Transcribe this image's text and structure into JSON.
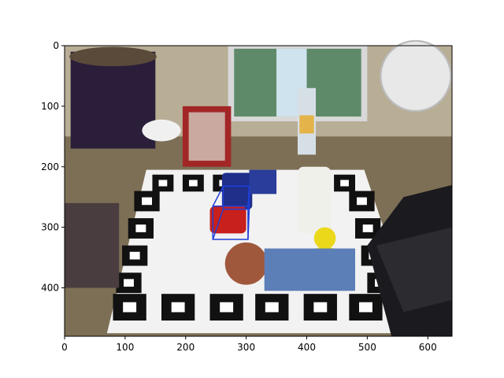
{
  "image": {
    "kind": "photo",
    "description_tags": [
      "tabletop-scene",
      "aruco-marker-board",
      "toys",
      "laptop",
      "monitor",
      "fan",
      "bottle",
      "mug",
      "rubber-duck",
      "toy-car"
    ],
    "colors": {
      "table": "#8b7a5c",
      "board": "#f2f2f2",
      "marker": "#111111",
      "box": "#1f3fd8",
      "frame": "#000000"
    }
  },
  "chart_data": {
    "type": "image-axes",
    "xlim": [
      0,
      640
    ],
    "ylim": [
      480,
      0
    ],
    "x_ticks": [
      0,
      100,
      200,
      300,
      400,
      500,
      600
    ],
    "y_ticks": [
      0,
      100,
      200,
      300,
      400
    ],
    "x_tick_labels": [
      "0",
      "100",
      "200",
      "300",
      "400",
      "500",
      "600"
    ],
    "y_tick_labels": [
      "0",
      "100",
      "200",
      "300",
      "400"
    ],
    "grid": false,
    "bbox_overlay": {
      "color": "#1f3fd8",
      "front_face": [
        [
          245,
          265
        ],
        [
          303,
          265
        ],
        [
          303,
          320
        ],
        [
          245,
          320
        ]
      ],
      "back_face": [
        [
          262,
          232
        ],
        [
          305,
          232
        ],
        [
          305,
          270
        ],
        [
          262,
          270
        ]
      ]
    }
  }
}
